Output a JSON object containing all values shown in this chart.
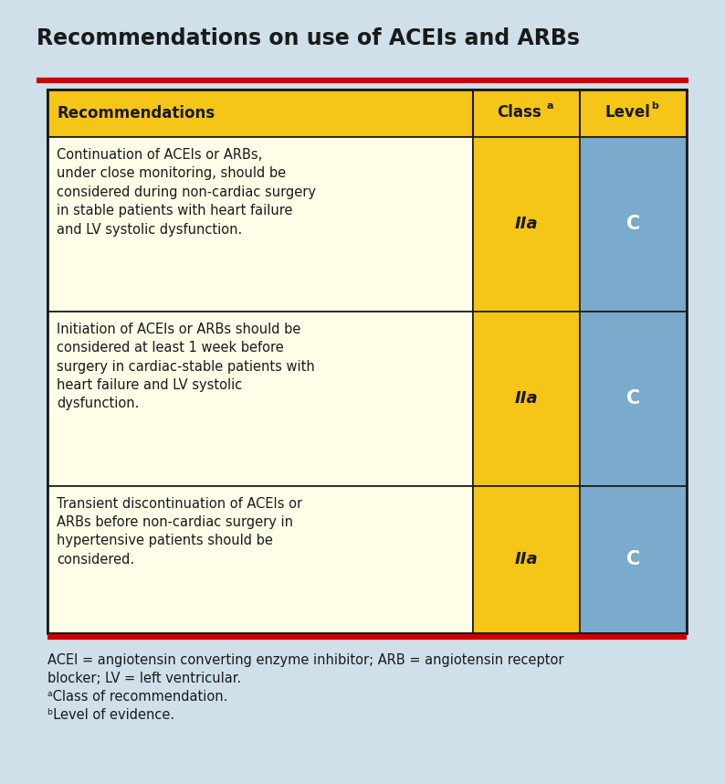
{
  "title": "Recommendations on use of ACEIs and ARBs",
  "bg_color": "#cfe0ea",
  "title_color": "#1a1a1a",
  "title_fontsize": 17,
  "red_line_color": "#cc0000",
  "table_border_color": "#1a1a1a",
  "header_bg": "#f5c518",
  "header_text_color": "#1a1a1a",
  "row_bg_light": "#fffde8",
  "class_col_bg": "#f5c518",
  "level_col_bg": "#7aaacc",
  "rows": [
    {
      "recommendation": "Continuation of ACEIs or ARBs,\nunder close monitoring, should be\nconsidered during non-cardiac surgery\nin stable patients with heart failure\nand LV systolic dysfunction.",
      "class": "IIa",
      "level": "C"
    },
    {
      "recommendation": "Initiation of ACEIs or ARBs should be\nconsidered at least 1 week before\nsurgery in cardiac-stable patients with\nheart failure and LV systolic\ndysfunction.",
      "class": "IIa",
      "level": "C"
    },
    {
      "recommendation": "Transient discontinuation of ACEIs or\nARBs before non-cardiac surgery in\nhypertensive patients should be\nconsidered.",
      "class": "IIa",
      "level": "C"
    }
  ],
  "footnote_lines": [
    "ACEI = angiotensin converting enzyme inhibitor; ARB = angiotensin receptor",
    "blocker; LV = left ventricular.",
    "ᵃClass of recommendation.",
    "ᵇLevel of evidence."
  ],
  "footnote_fontsize": 10.5,
  "white_text_color": "#ffffff",
  "fig_width": 7.94,
  "fig_height": 8.58,
  "dpi": 100
}
